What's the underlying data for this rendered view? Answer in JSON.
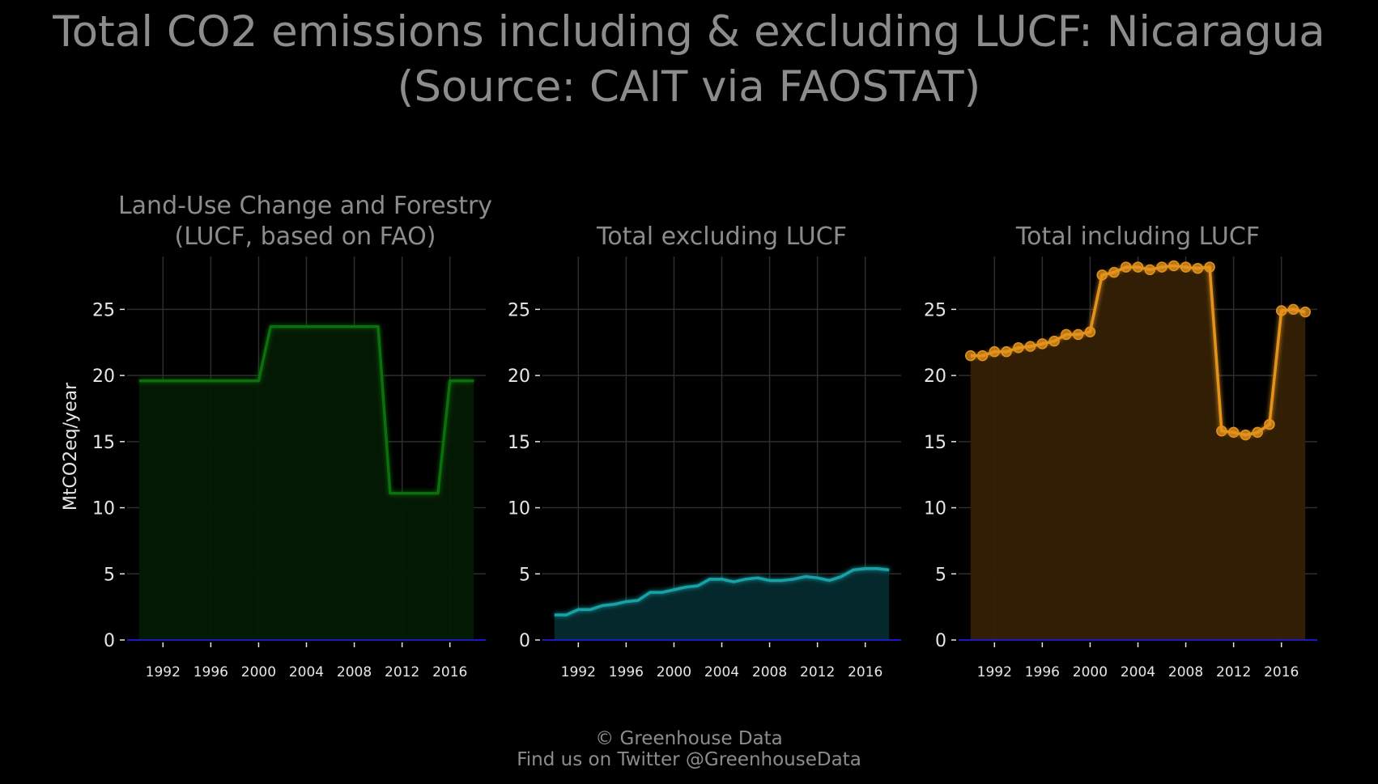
{
  "title": {
    "line1": "Total CO2 emissions including & excluding LUCF: Nicaragua",
    "line2": "(Source: CAIT via FAOSTAT)"
  },
  "footer": {
    "line1": "© Greenhouse Data",
    "line2": "Find us on Twitter @GreenhouseData"
  },
  "colors": {
    "background": "#000000",
    "grid": "#2e2e2e",
    "tick_text": "#e6e6e6",
    "subtitle_text": "#8c8c8c",
    "zero_line": "#1a1aff",
    "lucf": "#0c6e0c",
    "lucf_fill": "#041a04",
    "excl": "#17a2a8",
    "excl_fill": "#052a2e",
    "incl": "#e3921c",
    "incl_fill": "#342005"
  },
  "chart_data": [
    {
      "type": "area",
      "title": "Land-Use Change and Forestry\n(LUCF, based on FAO)",
      "ylabel": "MtCO2eq/year",
      "xlabel": "",
      "xlim": [
        1989,
        2019
      ],
      "ylim": [
        0,
        29
      ],
      "x_ticks": [
        1992,
        1996,
        2000,
        2004,
        2008,
        2012,
        2016
      ],
      "y_ticks": [
        0,
        5,
        10,
        15,
        20,
        25
      ],
      "grid": true,
      "markers": false,
      "x": [
        1990,
        1991,
        1992,
        1993,
        1994,
        1995,
        1996,
        1997,
        1998,
        1999,
        2000,
        2001,
        2002,
        2003,
        2004,
        2005,
        2006,
        2007,
        2008,
        2009,
        2010,
        2011,
        2012,
        2013,
        2014,
        2015,
        2016,
        2017,
        2018
      ],
      "values": [
        19.6,
        19.6,
        19.6,
        19.6,
        19.6,
        19.6,
        19.6,
        19.6,
        19.6,
        19.6,
        19.6,
        23.7,
        23.7,
        23.7,
        23.7,
        23.7,
        23.7,
        23.7,
        23.7,
        23.7,
        23.7,
        11.1,
        11.1,
        11.1,
        11.1,
        11.1,
        19.6,
        19.6,
        19.6
      ]
    },
    {
      "type": "area",
      "title": "Total excluding LUCF",
      "ylabel": "",
      "xlabel": "",
      "xlim": [
        1989,
        2019
      ],
      "ylim": [
        0,
        29
      ],
      "x_ticks": [
        1992,
        1996,
        2000,
        2004,
        2008,
        2012,
        2016
      ],
      "y_ticks": [
        0,
        5,
        10,
        15,
        20,
        25
      ],
      "grid": true,
      "markers": false,
      "x": [
        1990,
        1991,
        1992,
        1993,
        1994,
        1995,
        1996,
        1997,
        1998,
        1999,
        2000,
        2001,
        2002,
        2003,
        2004,
        2005,
        2006,
        2007,
        2008,
        2009,
        2010,
        2011,
        2012,
        2013,
        2014,
        2015,
        2016,
        2017,
        2018
      ],
      "values": [
        1.9,
        1.9,
        2.3,
        2.3,
        2.6,
        2.7,
        2.9,
        3.0,
        3.6,
        3.6,
        3.8,
        4.0,
        4.1,
        4.6,
        4.6,
        4.4,
        4.6,
        4.7,
        4.5,
        4.5,
        4.6,
        4.8,
        4.7,
        4.5,
        4.8,
        5.3,
        5.4,
        5.4,
        5.3
      ]
    },
    {
      "type": "area",
      "title": "Total including LUCF",
      "ylabel": "",
      "xlabel": "",
      "xlim": [
        1989,
        2019
      ],
      "ylim": [
        0,
        29
      ],
      "x_ticks": [
        1992,
        1996,
        2000,
        2004,
        2008,
        2012,
        2016
      ],
      "y_ticks": [
        0,
        5,
        10,
        15,
        20,
        25
      ],
      "grid": true,
      "markers": true,
      "x": [
        1990,
        1991,
        1992,
        1993,
        1994,
        1995,
        1996,
        1997,
        1998,
        1999,
        2000,
        2001,
        2002,
        2003,
        2004,
        2005,
        2006,
        2007,
        2008,
        2009,
        2010,
        2011,
        2012,
        2013,
        2014,
        2015,
        2016,
        2017,
        2018
      ],
      "values": [
        21.5,
        21.5,
        21.8,
        21.8,
        22.1,
        22.2,
        22.4,
        22.6,
        23.1,
        23.1,
        23.3,
        27.6,
        27.8,
        28.2,
        28.2,
        28.0,
        28.2,
        28.3,
        28.2,
        28.1,
        28.2,
        15.8,
        15.7,
        15.5,
        15.7,
        16.3,
        24.9,
        25.0,
        24.8
      ]
    }
  ]
}
